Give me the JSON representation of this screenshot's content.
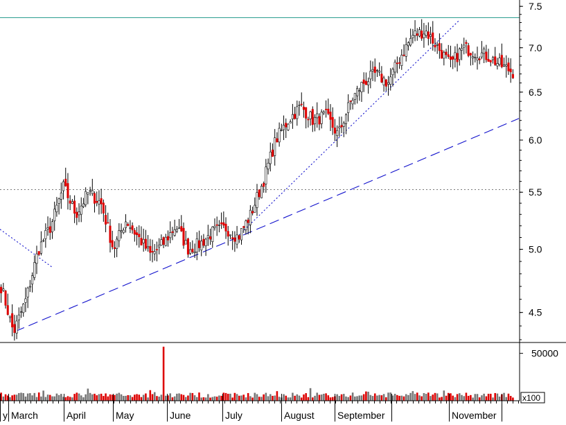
{
  "chart_data": [
    {
      "type": "candlestick",
      "title": "",
      "x_axis": {
        "tick_labels": [
          "y",
          "March",
          "April",
          "May",
          "June",
          "July",
          "August",
          "September",
          "November"
        ]
      },
      "y_axis": {
        "scale": "log",
        "side": "right",
        "ylim": [
          4.28,
          7.58
        ],
        "tick_labels": [
          "7.5",
          "7.0",
          "6.5",
          "6.0",
          "5.5",
          "5.0",
          "4.5"
        ],
        "ticks": [
          7.5,
          7.0,
          6.5,
          6.0,
          5.5,
          5.0,
          4.5
        ]
      },
      "grid": false,
      "colors": {
        "up": "#ffffff",
        "down": "#dd0000",
        "outline": "#000000"
      },
      "reference_lines": [
        {
          "kind": "horizontal",
          "value": 7.36,
          "style": "solid",
          "color": "#2a9d8f"
        },
        {
          "kind": "horizontal",
          "value": 5.53,
          "style": "dotted",
          "color": "#777777"
        }
      ],
      "trendlines": [
        {
          "style": "long-dash",
          "color": "#1010cc",
          "from": [
            "early March",
            4.36
          ],
          "to": [
            "end of chart",
            6.22
          ]
        },
        {
          "style": "dotted",
          "color": "#1010cc",
          "from": [
            "early July",
            5.08
          ],
          "to": [
            "October",
            7.32
          ]
        },
        {
          "style": "dotted",
          "color": "#1010cc",
          "from": [
            "late February",
            5.17
          ],
          "to": [
            "mid March",
            4.85
          ]
        }
      ],
      "close_path": [
        [
          "late Feb",
          4.7
        ],
        [
          "early Mar",
          4.35
        ],
        [
          "Mar",
          4.6
        ],
        [
          "Mar",
          5.0
        ],
        [
          "late Mar",
          5.2
        ],
        [
          "early Apr",
          5.55
        ],
        [
          "Apr",
          5.3
        ],
        [
          "mid Apr",
          5.5
        ],
        [
          "late Apr",
          5.4
        ],
        [
          "late Apr",
          5.0
        ],
        [
          "early May",
          5.25
        ],
        [
          "May",
          5.1
        ],
        [
          "May",
          4.95
        ],
        [
          "late May",
          5.05
        ],
        [
          "early Jun",
          5.2
        ],
        [
          "Jun",
          5.0
        ],
        [
          "Jun",
          5.05
        ],
        [
          "late Jun",
          5.15
        ],
        [
          "early Jul",
          5.18
        ],
        [
          "Jul",
          5.1
        ],
        [
          "Jul",
          5.3
        ],
        [
          "mid Jul",
          5.6
        ],
        [
          "late Jul",
          6.0
        ],
        [
          "early Aug",
          6.2
        ],
        [
          "Aug",
          6.35
        ],
        [
          "Aug",
          6.2
        ],
        [
          "late Aug",
          6.25
        ],
        [
          "early Sep",
          6.05
        ],
        [
          "Sep",
          6.4
        ],
        [
          "Sep",
          6.6
        ],
        [
          "mid Sep",
          6.7
        ],
        [
          "late Sep",
          6.6
        ],
        [
          "late Sep",
          6.9
        ],
        [
          "early Oct",
          7.15
        ],
        [
          "Oct",
          7.2
        ],
        [
          "Oct",
          7.0
        ],
        [
          "mid Oct",
          6.8
        ],
        [
          "late Oct",
          7.0
        ],
        [
          "early Nov",
          6.95
        ],
        [
          "Nov",
          6.9
        ],
        [
          "Nov",
          6.8
        ],
        [
          "end",
          6.72
        ]
      ]
    },
    {
      "type": "bar",
      "title": "",
      "y_axis": {
        "side": "right",
        "tick_labels": [
          "50000"
        ],
        "ticks": [
          50000
        ],
        "unit_label": "x100",
        "ylim": [
          0,
          60000
        ]
      },
      "colors": {
        "up": "#777777",
        "down": "#dd0000"
      },
      "typical_volume": 6000,
      "spike": {
        "position": "late May",
        "value": 57000
      }
    }
  ]
}
